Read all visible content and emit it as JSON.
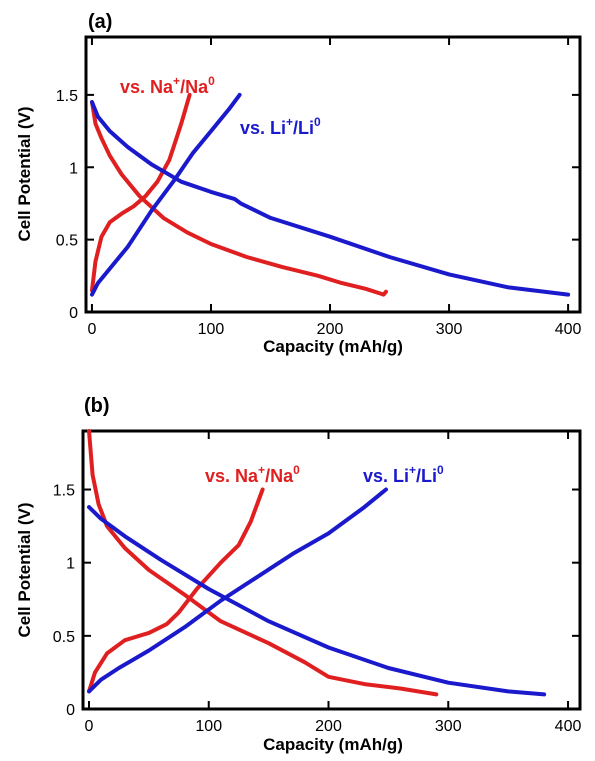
{
  "chart_data": [
    {
      "type": "line",
      "panel_label": "(a)",
      "xlabel": "Capacity (mAh/g)",
      "ylabel": "Cell Potential (V)",
      "xlim": [
        -5,
        410
      ],
      "ylim": [
        0,
        1.9
      ],
      "xticks": [
        0,
        100,
        200,
        300,
        400
      ],
      "xtick_labels": [
        "0",
        "100",
        "200",
        "300",
        "400"
      ],
      "yticks": [
        0,
        0.5,
        1,
        1.5
      ],
      "ytick_labels": [
        "0",
        "0.5",
        "1",
        "1.5"
      ],
      "grid": false,
      "series": [
        {
          "name": "vs. Na+/Na0",
          "label_parts": {
            "a": "vs. Na",
            "b": "+",
            "c": "/Na",
            "d": "0"
          },
          "color": "#e02020",
          "segments": [
            {
              "kind": "discharge",
              "x": [
                0,
                3,
                8,
                15,
                25,
                40,
                60,
                80,
                100,
                130,
                160,
                190,
                210,
                230,
                245,
                247
              ],
              "y": [
                1.45,
                1.3,
                1.2,
                1.08,
                0.95,
                0.8,
                0.65,
                0.55,
                0.47,
                0.38,
                0.31,
                0.25,
                0.2,
                0.16,
                0.12,
                0.14
              ]
            },
            {
              "kind": "charge",
              "x": [
                0,
                3,
                8,
                15,
                25,
                35,
                45,
                55,
                65,
                75,
                82
              ],
              "y": [
                0.15,
                0.35,
                0.52,
                0.62,
                0.68,
                0.73,
                0.8,
                0.9,
                1.05,
                1.3,
                1.5
              ]
            }
          ]
        },
        {
          "name": "vs. Li+/Li0",
          "label_parts": {
            "a": "vs. Li",
            "b": "+",
            "c": "/Li",
            "d": "0"
          },
          "color": "#1a1acc",
          "segments": [
            {
              "kind": "discharge",
              "x": [
                0,
                5,
                15,
                30,
                50,
                75,
                100,
                120,
                125,
                150,
                200,
                250,
                300,
                350,
                400
              ],
              "y": [
                1.45,
                1.35,
                1.25,
                1.14,
                1.02,
                0.9,
                0.83,
                0.78,
                0.75,
                0.65,
                0.52,
                0.38,
                0.26,
                0.17,
                0.12
              ]
            },
            {
              "kind": "charge",
              "x": [
                0,
                5,
                15,
                30,
                50,
                70,
                85,
                100,
                115,
                124
              ],
              "y": [
                0.12,
                0.2,
                0.3,
                0.45,
                0.7,
                0.92,
                1.1,
                1.25,
                1.4,
                1.5
              ]
            }
          ]
        }
      ]
    },
    {
      "type": "line",
      "panel_label": "(b)",
      "xlabel": "Capacity (mAh/g)",
      "ylabel": "Cell Potential (V)",
      "xlim": [
        -5,
        410
      ],
      "ylim": [
        0,
        1.9
      ],
      "xticks": [
        0,
        100,
        200,
        300,
        400
      ],
      "xtick_labels": [
        "0",
        "100",
        "200",
        "300",
        "400"
      ],
      "yticks": [
        0,
        0.5,
        1,
        1.5
      ],
      "ytick_labels": [
        "0",
        "0.5",
        "1",
        "1.5"
      ],
      "grid": false,
      "series": [
        {
          "name": "vs. Na+/Na0",
          "label_parts": {
            "a": "vs. Na",
            "b": "+",
            "c": "/Na",
            "d": "0"
          },
          "color": "#e02020",
          "segments": [
            {
              "kind": "discharge",
              "x": [
                0,
                3,
                8,
                15,
                30,
                50,
                80,
                110,
                150,
                180,
                200,
                230,
                260,
                290
              ],
              "y": [
                1.9,
                1.6,
                1.4,
                1.25,
                1.1,
                0.95,
                0.78,
                0.6,
                0.45,
                0.32,
                0.22,
                0.17,
                0.14,
                0.1
              ]
            },
            {
              "kind": "charge",
              "x": [
                0,
                5,
                15,
                30,
                50,
                65,
                75,
                90,
                110,
                125,
                135,
                145
              ],
              "y": [
                0.12,
                0.25,
                0.38,
                0.47,
                0.52,
                0.58,
                0.66,
                0.82,
                1.0,
                1.12,
                1.28,
                1.5
              ]
            }
          ]
        },
        {
          "name": "vs. Li+/Li0",
          "label_parts": {
            "a": "vs. Li",
            "b": "+",
            "c": "/Li",
            "d": "0"
          },
          "color": "#1a1acc",
          "segments": [
            {
              "kind": "discharge",
              "x": [
                0,
                10,
                30,
                60,
                100,
                150,
                200,
                250,
                300,
                350,
                380
              ],
              "y": [
                1.38,
                1.3,
                1.18,
                1.02,
                0.82,
                0.6,
                0.42,
                0.28,
                0.18,
                0.12,
                0.1
              ]
            },
            {
              "kind": "charge",
              "x": [
                0,
                10,
                25,
                50,
                80,
                110,
                140,
                170,
                200,
                230,
                248
              ],
              "y": [
                0.12,
                0.2,
                0.28,
                0.4,
                0.56,
                0.74,
                0.9,
                1.06,
                1.2,
                1.38,
                1.5
              ]
            }
          ]
        }
      ]
    }
  ]
}
